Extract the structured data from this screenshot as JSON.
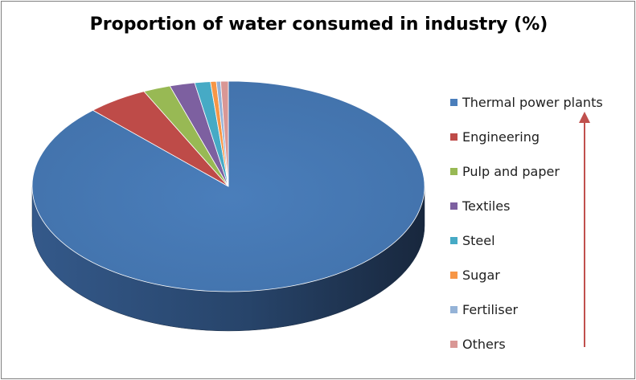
{
  "chart_data": {
    "type": "pie",
    "style": "3d",
    "title": "Proportion of water consumed in industry (%)",
    "categories": [
      "Thermal power plants",
      "Engineering",
      "Pulp and paper",
      "Textiles",
      "Steel",
      "Sugar",
      "Fertiliser",
      "Others"
    ],
    "values": [
      87.87,
      5.05,
      2.26,
      2.07,
      1.29,
      0.48,
      0.35,
      0.63
    ],
    "colors": [
      "#4a7ebb",
      "#be4b48",
      "#98b954",
      "#7d60a0",
      "#46aac5",
      "#f79646",
      "#95b3d7",
      "#d99795"
    ],
    "legend": {
      "position": "right"
    }
  }
}
